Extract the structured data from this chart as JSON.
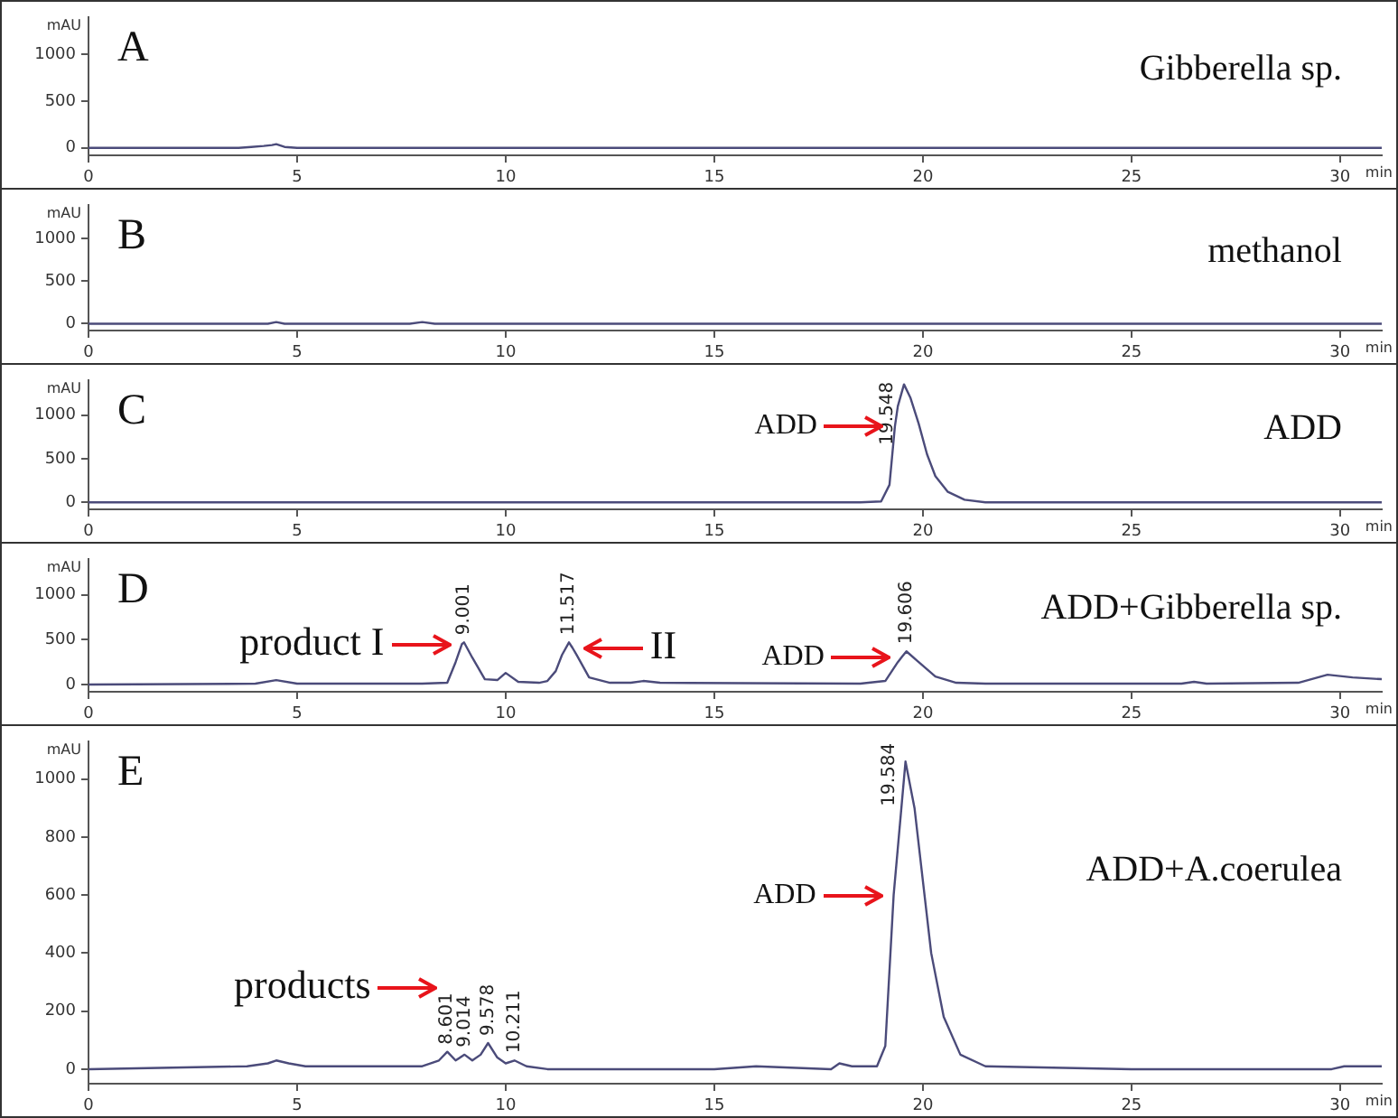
{
  "chart_data": [
    {
      "type": "line",
      "title": "A",
      "subtitle": "Gibberella sp.",
      "xlabel": "min",
      "ylabel": "mAU",
      "color": "#4b4b7a",
      "xlim": [
        0,
        31
      ],
      "xticks": [
        0,
        5,
        10,
        15,
        20,
        25,
        30
      ],
      "ylim": [
        -80,
        1400
      ],
      "yticks": [
        0,
        500,
        1000
      ],
      "x": [
        0,
        3.6,
        3.9,
        4.2,
        4.4,
        4.5,
        4.7,
        5.0,
        31
      ],
      "values": [
        0,
        0,
        10,
        20,
        30,
        40,
        10,
        0,
        0
      ]
    },
    {
      "type": "line",
      "title": "B",
      "subtitle": "methanol",
      "xlabel": "min",
      "ylabel": "mAU",
      "color": "#4b4b7a",
      "xlim": [
        0,
        31
      ],
      "xticks": [
        0,
        5,
        10,
        15,
        20,
        25,
        30
      ],
      "ylim": [
        -80,
        1400
      ],
      "yticks": [
        0,
        500,
        1000
      ],
      "x": [
        0,
        4.3,
        4.5,
        4.7,
        7.7,
        8,
        8.3,
        31
      ],
      "values": [
        0,
        0,
        20,
        0,
        0,
        20,
        0,
        0
      ]
    },
    {
      "type": "line",
      "title": "C",
      "subtitle": "ADD",
      "xlabel": "min",
      "ylabel": "mAU",
      "color": "#4b4b7a",
      "xlim": [
        0,
        31
      ],
      "xticks": [
        0,
        5,
        10,
        15,
        20,
        25,
        30
      ],
      "ylim": [
        -80,
        1400
      ],
      "yticks": [
        0,
        500,
        1000
      ],
      "x": [
        0,
        18.5,
        19.0,
        19.2,
        19.33,
        19.4,
        19.548,
        19.7,
        19.9,
        20.1,
        20.3,
        20.6,
        21.0,
        21.5,
        31
      ],
      "values": [
        0,
        0,
        10,
        200,
        870,
        1100,
        1350,
        1200,
        900,
        550,
        300,
        120,
        30,
        0,
        0
      ],
      "annotations": [
        {
          "text": "19.548",
          "x": 19.548,
          "y": 1350
        },
        {
          "text": "ADD",
          "x": 19.33,
          "y": 870
        }
      ]
    },
    {
      "type": "line",
      "title": "D",
      "subtitle": "ADD+Gibberella sp.",
      "xlabel": "min",
      "ylabel": "mAU",
      "color": "#4b4b7a",
      "xlim": [
        0,
        31
      ],
      "xticks": [
        0,
        5,
        10,
        15,
        20,
        25,
        30
      ],
      "ylim": [
        -80,
        1400
      ],
      "yticks": [
        0,
        500,
        1000
      ],
      "x": [
        0,
        4.0,
        4.5,
        5.0,
        8.0,
        8.6,
        8.8,
        8.95,
        9.001,
        9.2,
        9.5,
        9.8,
        10.0,
        10.3,
        10.8,
        11.0,
        11.2,
        11.35,
        11.517,
        11.6,
        11.7,
        12.0,
        12.5,
        13.0,
        13.3,
        13.7,
        18.5,
        19.1,
        19.4,
        19.5,
        19.606,
        19.9,
        20.3,
        20.8,
        21.5,
        26.2,
        26.5,
        26.8,
        29.0,
        29.7,
        30.3,
        31
      ],
      "values": [
        0,
        10,
        50,
        10,
        10,
        20,
        250,
        450,
        470,
        300,
        60,
        50,
        130,
        30,
        20,
        40,
        150,
        330,
        470,
        410,
        330,
        80,
        20,
        20,
        40,
        20,
        10,
        40,
        250,
        310,
        370,
        250,
        90,
        20,
        10,
        10,
        30,
        10,
        20,
        110,
        80,
        60
      ],
      "annotations": [
        {
          "text": "9.001",
          "x": 9.001,
          "y": 470
        },
        {
          "text": "11.517",
          "x": 11.517,
          "y": 470
        },
        {
          "text": "19.606",
          "x": 19.606,
          "y": 370
        },
        {
          "text": "product I",
          "x": 8.95,
          "y": 450
        },
        {
          "text": "II",
          "x": 11.6,
          "y": 410
        },
        {
          "text": "ADD",
          "x": 19.5,
          "y": 310
        }
      ]
    },
    {
      "type": "line",
      "title": "E",
      "subtitle": "ADD+A.coerulea",
      "xlabel": "min",
      "ylabel": "mAU",
      "color": "#4b4b7a",
      "xlim": [
        0,
        31
      ],
      "xticks": [
        0,
        5,
        10,
        15,
        20,
        25,
        30
      ],
      "ylim": [
        -50,
        1130
      ],
      "yticks": [
        0,
        200,
        400,
        600,
        800,
        1000
      ],
      "x": [
        0,
        3.8,
        4.3,
        4.5,
        4.8,
        5.2,
        6,
        7,
        8.0,
        8.4,
        8.601,
        8.8,
        9.014,
        9.2,
        9.4,
        9.578,
        9.8,
        10.0,
        10.211,
        10.5,
        11,
        15,
        16,
        17.8,
        18.0,
        18.3,
        18.9,
        19.1,
        19.3,
        19.584,
        19.8,
        20.0,
        20.2,
        20.5,
        20.9,
        21.5,
        25,
        29.8,
        30.1,
        31
      ],
      "values": [
        0,
        10,
        20,
        30,
        20,
        10,
        10,
        10,
        10,
        30,
        60,
        30,
        50,
        30,
        50,
        90,
        40,
        20,
        30,
        10,
        0,
        0,
        10,
        0,
        20,
        10,
        10,
        80,
        600,
        1060,
        900,
        650,
        400,
        180,
        50,
        10,
        0,
        0,
        10,
        10
      ],
      "annotations": [
        "products",
        {
          "text": "8.601",
          "x": 8.601,
          "y": 60
        },
        {
          "text": "9.014",
          "x": 9.014,
          "y": 50
        },
        {
          "text": "9.578",
          "x": 9.578,
          "y": 90
        },
        {
          "text": "10.211",
          "x": 10.211,
          "y": 30
        },
        {
          "text": "19.584",
          "x": 19.584,
          "y": 1060
        },
        {
          "text": "ADD",
          "x": 19.3,
          "y": 600
        }
      ]
    }
  ]
}
